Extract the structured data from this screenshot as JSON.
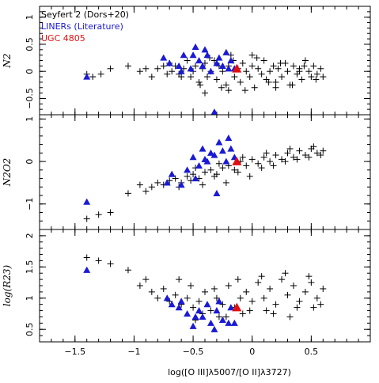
{
  "chart_data": {
    "type": "scatter",
    "xlabel": "log([O III]λ5007/[O II]λ3727)",
    "xlim": [
      -1.8,
      1.0
    ],
    "xticks": [
      -1.5,
      -1,
      -0.5,
      0,
      0.5
    ],
    "xtick_labels": [
      "−1.5",
      "−1",
      "−0.5",
      "0",
      "0.5"
    ],
    "legend": {
      "placement": "top-left",
      "entries": [
        {
          "label": "Seyfert 2 (Dors+20)",
          "color": "#000000",
          "marker": "plus"
        },
        {
          "label": "LINERs (Literature)",
          "color": "#1a1ad4",
          "marker": "triangle"
        },
        {
          "label": "UGC 4805",
          "color": "#e01010",
          "marker": "triangle"
        }
      ]
    },
    "panels": [
      {
        "ylabel": "N2",
        "ylim": [
          -0.8,
          1.2
        ],
        "yticks": [
          -0.5,
          0,
          0.5,
          1
        ],
        "ytick_labels": [
          "−0.5",
          "0",
          "0.5",
          "1"
        ],
        "series": [
          {
            "name": "Seyfert 2 (Dors+20)",
            "marker": "plus",
            "color": "#000000",
            "x": [
              -1.4,
              -1.35,
              -1.28,
              -1.2,
              -1.05,
              -0.95,
              -0.9,
              -0.85,
              -0.8,
              -0.75,
              -0.72,
              -0.7,
              -0.68,
              -0.65,
              -0.6,
              -0.58,
              -0.55,
              -0.5,
              -0.48,
              -0.45,
              -0.42,
              -0.4,
              -0.38,
              -0.35,
              -0.32,
              -0.3,
              -0.28,
              -0.25,
              -0.22,
              -0.2,
              -0.18,
              -0.15,
              -0.12,
              -0.1,
              -0.08,
              -0.05,
              -0.02,
              0.0,
              0.02,
              0.05,
              0.08,
              0.1,
              0.12,
              0.15,
              0.18,
              0.2,
              0.22,
              0.25,
              0.28,
              0.3,
              0.32,
              0.35,
              0.38,
              0.4,
              0.42,
              0.45,
              0.48,
              0.5,
              0.52,
              0.55,
              0.58,
              0.6,
              -0.62,
              -0.52,
              -0.44,
              -0.36,
              -0.26,
              -0.16,
              -0.06,
              0.04,
              0.14,
              0.24,
              0.34,
              0.44,
              0.54,
              -0.4,
              -0.2,
              0.0,
              0.2,
              0.4
            ],
            "y": [
              -0.05,
              -0.1,
              -0.05,
              0.05,
              0.1,
              0.0,
              0.05,
              -0.1,
              0.05,
              0.1,
              -0.05,
              0.15,
              0.0,
              0.1,
              -0.1,
              0.05,
              0.2,
              0.0,
              0.1,
              -0.2,
              0.05,
              0.15,
              -0.1,
              0.0,
              0.2,
              -0.15,
              0.1,
              0.0,
              -0.25,
              0.1,
              0.3,
              -0.1,
              0.05,
              -0.2,
              0.15,
              0.0,
              -0.1,
              0.1,
              -0.3,
              0.05,
              -0.05,
              0.2,
              -0.15,
              0.0,
              0.1,
              -0.2,
              0.05,
              -0.1,
              0.15,
              0.0,
              -0.25,
              0.1,
              -0.05,
              0.05,
              -0.15,
              0.2,
              0.0,
              -0.1,
              0.1,
              -0.05,
              0.05,
              -0.1,
              -0.05,
              -0.1,
              -0.25,
              0.25,
              -0.3,
              0.2,
              -0.35,
              0.25,
              -0.2,
              0.15,
              -0.25,
              0.1,
              -0.15,
              -0.4,
              -0.35,
              0.3,
              -0.3,
              0.0
            ]
          },
          {
            "name": "LINERs (Literature)",
            "marker": "triangle",
            "color": "#1a1ad4",
            "x": [
              -1.4,
              -0.75,
              -0.7,
              -0.62,
              -0.58,
              -0.52,
              -0.48,
              -0.45,
              -0.42,
              -0.38,
              -0.35,
              -0.32,
              -0.28,
              -0.25,
              -0.22,
              -0.2,
              -0.18,
              -0.3,
              -0.6,
              -0.5,
              -0.4,
              -0.15
            ],
            "y": [
              -0.1,
              0.25,
              0.15,
              0.1,
              0.3,
              0.05,
              0.45,
              0.2,
              0.1,
              0.3,
              0.0,
              -0.75,
              0.25,
              0.1,
              0.35,
              0.05,
              0.2,
              0.15,
              0.0,
              0.3,
              0.4,
              0.05
            ]
          },
          {
            "name": "UGC 4805",
            "marker": "triangle",
            "color": "#e01010",
            "x": [
              -0.13
            ],
            "y": [
              0.05
            ]
          }
        ]
      },
      {
        "ylabel": "N2O2",
        "ylim": [
          -1.6,
          1.1
        ],
        "yticks": [
          -1,
          0,
          1
        ],
        "ytick_labels": [
          "−1",
          "0",
          "1"
        ],
        "series": [
          {
            "name": "Seyfert 2 (Dors+20)",
            "marker": "plus",
            "color": "#000000",
            "x": [
              -1.4,
              -1.3,
              -1.2,
              -1.05,
              -0.95,
              -0.9,
              -0.85,
              -0.8,
              -0.75,
              -0.7,
              -0.65,
              -0.6,
              -0.55,
              -0.5,
              -0.45,
              -0.4,
              -0.35,
              -0.3,
              -0.25,
              -0.2,
              -0.15,
              -0.1,
              -0.05,
              0.0,
              0.05,
              0.1,
              0.15,
              0.2,
              0.25,
              0.3,
              0.35,
              0.4,
              0.45,
              0.5,
              0.55,
              0.6,
              -0.62,
              -0.52,
              -0.42,
              -0.32,
              -0.22,
              -0.12,
              -0.02,
              0.08,
              0.18,
              0.28,
              0.38,
              0.48,
              0.58,
              -0.48,
              -0.28,
              -0.08,
              0.12,
              0.32,
              0.52
            ],
            "y": [
              -1.35,
              -1.25,
              -1.2,
              -0.75,
              -0.55,
              -0.7,
              -0.6,
              -0.5,
              -0.55,
              -0.45,
              -0.4,
              -0.5,
              -0.35,
              -0.3,
              -0.4,
              -0.25,
              -0.2,
              -0.3,
              -0.15,
              -0.1,
              -0.2,
              0.0,
              -0.1,
              0.05,
              -0.05,
              0.1,
              0.0,
              0.15,
              0.05,
              0.2,
              0.1,
              0.25,
              0.15,
              0.3,
              0.2,
              0.25,
              -0.6,
              -0.45,
              -0.55,
              -0.35,
              -0.5,
              -0.25,
              -0.35,
              -0.15,
              -0.1,
              0.0,
              0.05,
              0.1,
              0.15,
              -0.15,
              -0.05,
              0.1,
              0.2,
              0.3,
              0.35
            ]
          },
          {
            "name": "LINERs (Literature)",
            "marker": "triangle",
            "color": "#1a1ad4",
            "x": [
              -1.4,
              -0.72,
              -0.68,
              -0.6,
              -0.55,
              -0.5,
              -0.45,
              -0.42,
              -0.38,
              -0.35,
              -0.3,
              -0.28,
              -0.25,
              -0.22,
              -0.2,
              -0.18,
              -0.32,
              -0.48,
              -0.4,
              -0.15
            ],
            "y": [
              -0.95,
              -0.5,
              -0.3,
              -0.55,
              -0.2,
              0.1,
              -0.1,
              0.3,
              0.0,
              0.2,
              -0.75,
              0.45,
              0.25,
              0.0,
              0.55,
              0.3,
              0.15,
              -0.4,
              0.05,
              0.1
            ]
          },
          {
            "name": "UGC 4805",
            "marker": "triangle",
            "color": "#e01010",
            "x": [
              -0.13
            ],
            "y": [
              0.0
            ]
          }
        ]
      },
      {
        "ylabel": "log(R23)",
        "ylim": [
          0.3,
          2.1
        ],
        "yticks": [
          0.5,
          1,
          1.5,
          2
        ],
        "ytick_labels": [
          "0.5",
          "1",
          "1.5",
          "2"
        ],
        "series": [
          {
            "name": "Seyfert 2 (Dors+20)",
            "marker": "plus",
            "color": "#000000",
            "x": [
              -1.4,
              -1.3,
              -1.2,
              -1.05,
              -0.95,
              -0.9,
              -0.85,
              -0.8,
              -0.75,
              -0.7,
              -0.65,
              -0.6,
              -0.55,
              -0.5,
              -0.45,
              -0.4,
              -0.35,
              -0.3,
              -0.25,
              -0.2,
              -0.15,
              -0.1,
              -0.05,
              0.0,
              0.05,
              0.1,
              0.15,
              0.2,
              0.25,
              0.3,
              0.35,
              0.4,
              0.45,
              0.5,
              0.55,
              0.6,
              -0.62,
              -0.52,
              -0.42,
              -0.32,
              -0.22,
              -0.12,
              -0.02,
              0.08,
              0.18,
              0.28,
              0.38,
              0.48,
              0.58,
              -0.48,
              -0.28,
              -0.08,
              0.12,
              0.32,
              0.52
            ],
            "y": [
              1.65,
              1.6,
              1.55,
              1.45,
              1.2,
              1.3,
              1.1,
              1.0,
              1.15,
              0.95,
              1.05,
              0.9,
              1.0,
              0.85,
              0.95,
              1.1,
              0.8,
              1.0,
              0.9,
              1.2,
              0.85,
              1.0,
              1.1,
              0.95,
              1.25,
              1.0,
              1.15,
              0.9,
              1.3,
              1.05,
              1.2,
              0.95,
              1.1,
              1.25,
              1.0,
              1.15,
              1.3,
              1.2,
              0.75,
              1.15,
              0.7,
              1.3,
              0.8,
              1.35,
              0.75,
              1.4,
              0.85,
              1.35,
              0.9,
              0.65,
              0.7,
              0.75,
              0.8,
              0.7,
              0.85
            ]
          },
          {
            "name": "LINERs (Literature)",
            "marker": "triangle",
            "color": "#1a1ad4",
            "x": [
              -1.4,
              -0.72,
              -0.68,
              -0.62,
              -0.55,
              -0.5,
              -0.45,
              -0.42,
              -0.38,
              -0.35,
              -0.3,
              -0.28,
              -0.25,
              -0.2,
              -0.18,
              -0.6,
              -0.48,
              -0.32,
              -0.15
            ],
            "y": [
              1.45,
              1.0,
              0.9,
              0.85,
              0.75,
              0.55,
              0.8,
              0.7,
              0.9,
              0.6,
              0.8,
              0.95,
              0.65,
              0.6,
              0.85,
              0.95,
              0.7,
              0.5,
              0.6
            ]
          },
          {
            "name": "UGC 4805",
            "marker": "triangle",
            "color": "#e01010",
            "x": [
              -0.13
            ],
            "y": [
              0.85
            ]
          }
        ]
      }
    ]
  }
}
